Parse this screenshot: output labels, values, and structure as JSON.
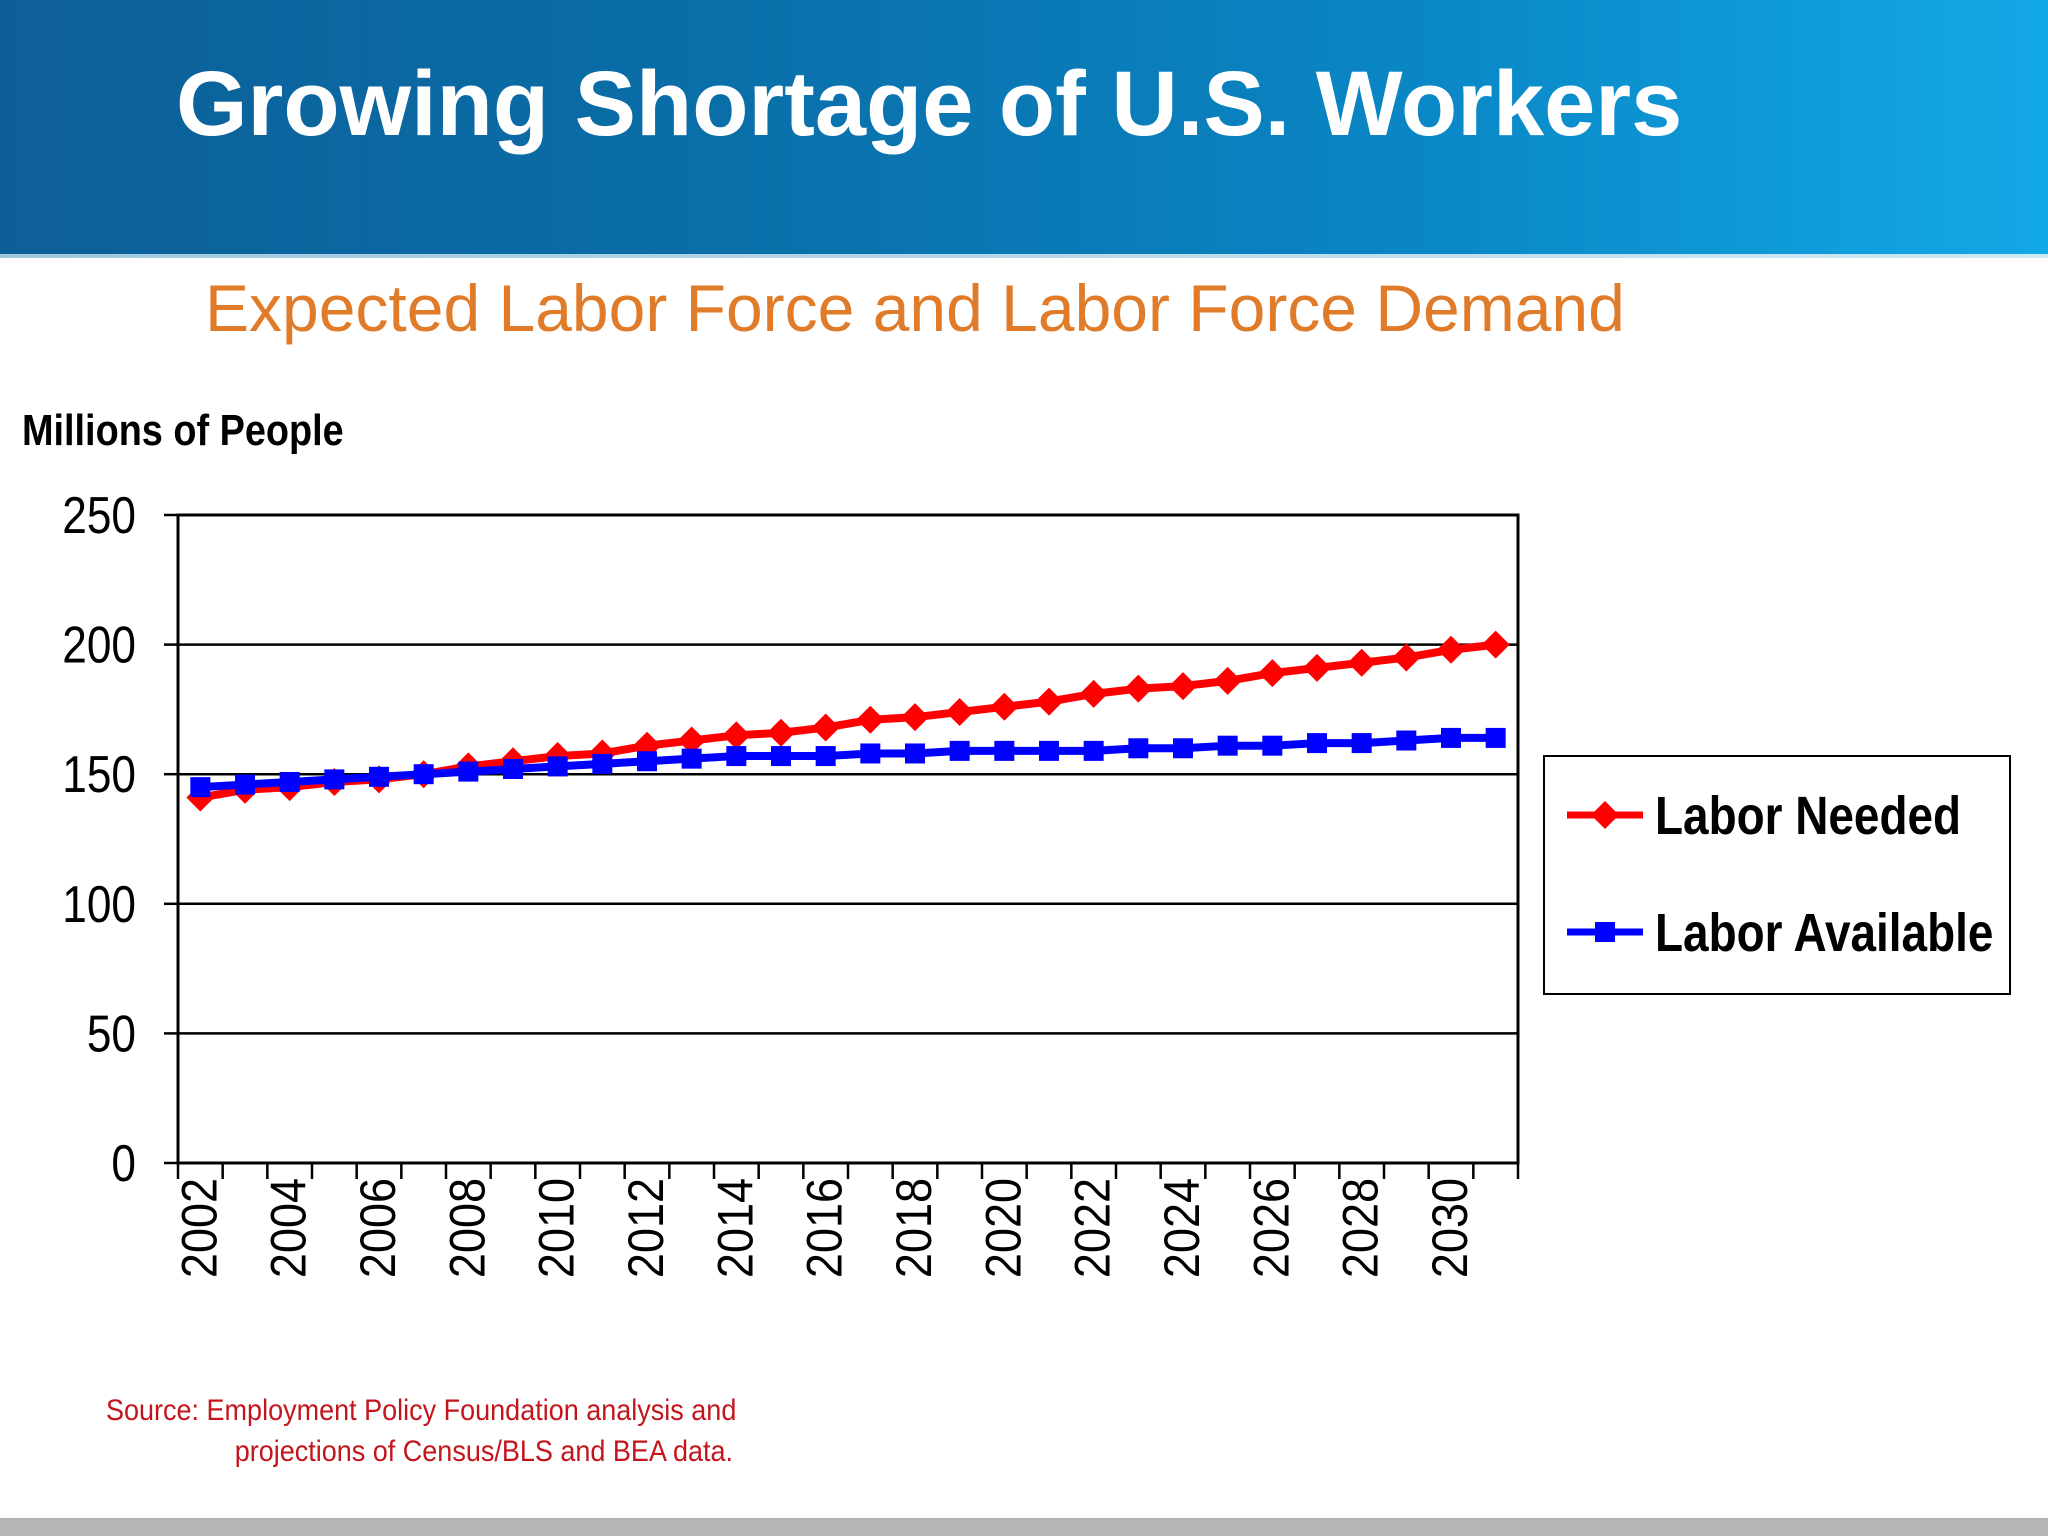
{
  "slide": {
    "title": "Growing Shortage of U.S. Workers",
    "subtitle": "Expected Labor Force and Labor Force Demand",
    "source_line1": "Source:  Employment Policy Foundation analysis and",
    "source_line2": "projections of Census/BLS and BEA data."
  },
  "colors": {
    "header_start": "#0d5f97",
    "header_end": "#13a9e6",
    "subtitle": "#e07b2a",
    "source": "#c3161c",
    "labor_needed": "#ff0000",
    "labor_available": "#0000ff"
  },
  "chart_data": {
    "type": "line",
    "title": "Expected Labor Force and Labor Force Demand",
    "xlabel": "",
    "ylabel": "Millions of People",
    "ylim": [
      0,
      250
    ],
    "yticks": [
      "0",
      "50",
      "100",
      "150",
      "200",
      "250"
    ],
    "xtick_labels": [
      "2002",
      "2004",
      "2006",
      "2008",
      "2010",
      "2012",
      "2014",
      "2016",
      "2018",
      "2020",
      "2022",
      "2024",
      "2026",
      "2028",
      "2030"
    ],
    "grid": "horizontal",
    "legend_position": "right",
    "x": [
      2002,
      2003,
      2004,
      2005,
      2006,
      2007,
      2008,
      2009,
      2010,
      2011,
      2012,
      2013,
      2014,
      2015,
      2016,
      2017,
      2018,
      2019,
      2020,
      2021,
      2022,
      2023,
      2024,
      2025,
      2026,
      2027,
      2028,
      2029,
      2030,
      2031
    ],
    "series": [
      {
        "name": "Labor Needed",
        "marker": "diamond",
        "values": [
          141,
          144,
          145,
          147,
          148,
          150,
          153,
          155,
          157,
          158,
          161,
          163,
          165,
          166,
          168,
          171,
          172,
          174,
          176,
          178,
          181,
          183,
          184,
          186,
          189,
          191,
          193,
          195,
          198,
          200
        ]
      },
      {
        "name": "Labor Available",
        "marker": "square",
        "values": [
          145,
          146,
          147,
          148,
          149,
          150,
          151,
          152,
          153,
          154,
          155,
          156,
          157,
          157,
          157,
          158,
          158,
          159,
          159,
          159,
          159,
          160,
          160,
          161,
          161,
          162,
          162,
          163,
          164,
          164
        ]
      }
    ]
  }
}
